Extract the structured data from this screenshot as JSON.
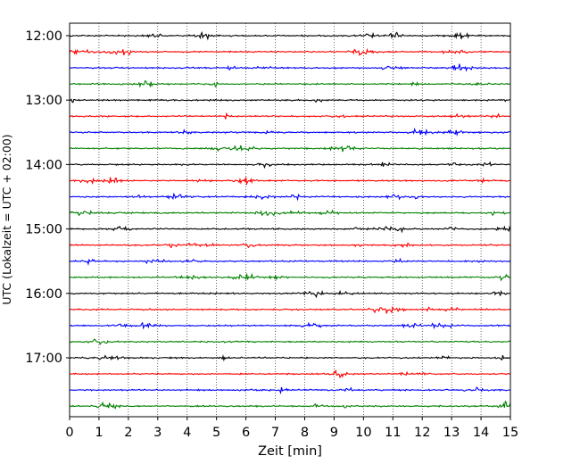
{
  "chart_data": {
    "type": "line",
    "subtype": "helicorder",
    "title": "",
    "xlabel": "Zeit  [min]",
    "ylabel": "UTC (Lokalzeit = UTC + 02:00)",
    "xlim": [
      0,
      15
    ],
    "x_ticks": [
      0,
      1,
      2,
      3,
      4,
      5,
      6,
      7,
      8,
      9,
      10,
      11,
      12,
      13,
      14,
      15
    ],
    "x_tick_labels": [
      "0",
      "1",
      "2",
      "3",
      "4",
      "5",
      "6",
      "7",
      "8",
      "9",
      "10",
      "11",
      "12",
      "13",
      "14",
      "15"
    ],
    "y_tick_labels": [
      "12:00",
      "13:00",
      "14:00",
      "15:00",
      "16:00",
      "17:00"
    ],
    "trace_interval_minutes": 15,
    "traces_per_hour": 4,
    "color_cycle": [
      "#000000",
      "#ff0000",
      "#0000ff",
      "#008000"
    ],
    "grid": "vertical-dotted",
    "legend": "none",
    "traces": [
      {
        "start_time": "12:00",
        "color": "#000000"
      },
      {
        "start_time": "12:15",
        "color": "#ff0000"
      },
      {
        "start_time": "12:30",
        "color": "#0000ff"
      },
      {
        "start_time": "12:45",
        "color": "#008000"
      },
      {
        "start_time": "13:00",
        "color": "#000000"
      },
      {
        "start_time": "13:15",
        "color": "#ff0000"
      },
      {
        "start_time": "13:30",
        "color": "#0000ff"
      },
      {
        "start_time": "13:45",
        "color": "#008000"
      },
      {
        "start_time": "14:00",
        "color": "#000000"
      },
      {
        "start_time": "14:15",
        "color": "#ff0000"
      },
      {
        "start_time": "14:30",
        "color": "#0000ff"
      },
      {
        "start_time": "14:45",
        "color": "#008000"
      },
      {
        "start_time": "15:00",
        "color": "#000000"
      },
      {
        "start_time": "15:15",
        "color": "#ff0000"
      },
      {
        "start_time": "15:30",
        "color": "#0000ff"
      },
      {
        "start_time": "15:45",
        "color": "#008000"
      },
      {
        "start_time": "16:00",
        "color": "#000000"
      },
      {
        "start_time": "16:15",
        "color": "#ff0000"
      },
      {
        "start_time": "16:30",
        "color": "#0000ff"
      },
      {
        "start_time": "16:45",
        "color": "#008000"
      },
      {
        "start_time": "17:00",
        "color": "#000000"
      },
      {
        "start_time": "17:15",
        "color": "#ff0000"
      },
      {
        "start_time": "17:30",
        "color": "#0000ff"
      },
      {
        "start_time": "17:45",
        "color": "#008000"
      }
    ]
  }
}
